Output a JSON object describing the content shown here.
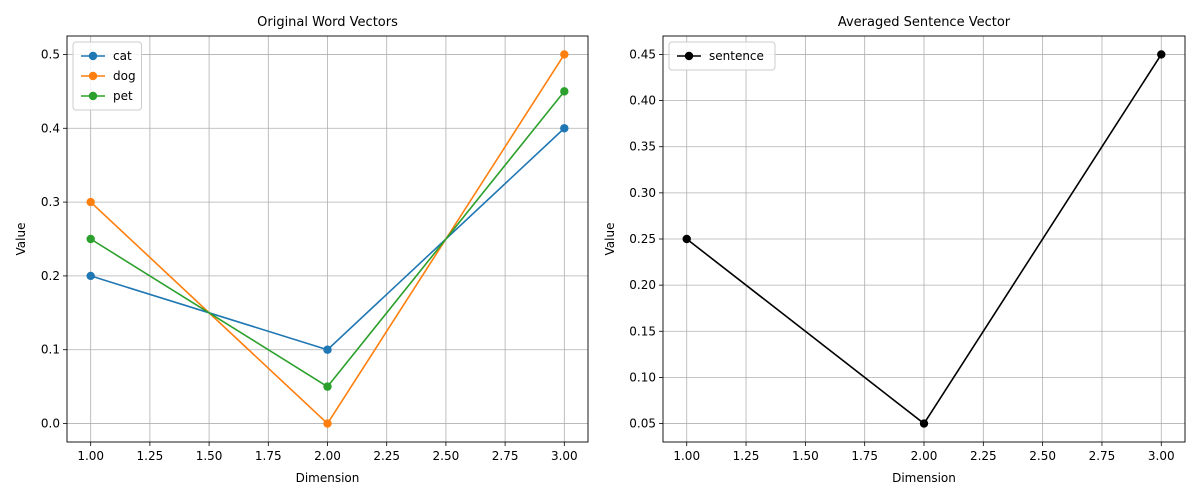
{
  "chart_data": [
    {
      "type": "line",
      "title": "Original Word Vectors",
      "xlabel": "Dimension",
      "ylabel": "Value",
      "x": [
        1,
        2,
        3
      ],
      "xlim": [
        0.9,
        3.1
      ],
      "ylim": [
        -0.025,
        0.525
      ],
      "xticks": [
        1.0,
        1.25,
        1.5,
        1.75,
        2.0,
        2.25,
        2.5,
        2.75,
        3.0
      ],
      "xtick_labels": [
        "1.00",
        "1.25",
        "1.50",
        "1.75",
        "2.00",
        "2.25",
        "2.50",
        "2.75",
        "3.00"
      ],
      "yticks": [
        0.0,
        0.1,
        0.2,
        0.3,
        0.4,
        0.5
      ],
      "ytick_labels": [
        "0.0",
        "0.1",
        "0.2",
        "0.3",
        "0.4",
        "0.5"
      ],
      "grid": true,
      "legend": "upper-left",
      "series": [
        {
          "name": "cat",
          "color": "#1f77b4",
          "values": [
            0.2,
            0.1,
            0.4
          ]
        },
        {
          "name": "dog",
          "color": "#ff7f0e",
          "values": [
            0.3,
            0.0,
            0.5
          ]
        },
        {
          "name": "pet",
          "color": "#2ca02c",
          "values": [
            0.25,
            0.05,
            0.45
          ]
        }
      ]
    },
    {
      "type": "line",
      "title": "Averaged Sentence Vector",
      "xlabel": "Dimension",
      "ylabel": "Value",
      "x": [
        1,
        2,
        3
      ],
      "xlim": [
        0.9,
        3.1
      ],
      "ylim": [
        0.03,
        0.47
      ],
      "xticks": [
        1.0,
        1.25,
        1.5,
        1.75,
        2.0,
        2.25,
        2.5,
        2.75,
        3.0
      ],
      "xtick_labels": [
        "1.00",
        "1.25",
        "1.50",
        "1.75",
        "2.00",
        "2.25",
        "2.50",
        "2.75",
        "3.00"
      ],
      "yticks": [
        0.05,
        0.1,
        0.15,
        0.2,
        0.25,
        0.3,
        0.35,
        0.4,
        0.45
      ],
      "ytick_labels": [
        "0.05",
        "0.10",
        "0.15",
        "0.20",
        "0.25",
        "0.30",
        "0.35",
        "0.40",
        "0.45"
      ],
      "grid": true,
      "legend": "upper-left",
      "series": [
        {
          "name": "sentence",
          "color": "#000000",
          "values": [
            0.25,
            0.05,
            0.45
          ]
        }
      ]
    }
  ]
}
